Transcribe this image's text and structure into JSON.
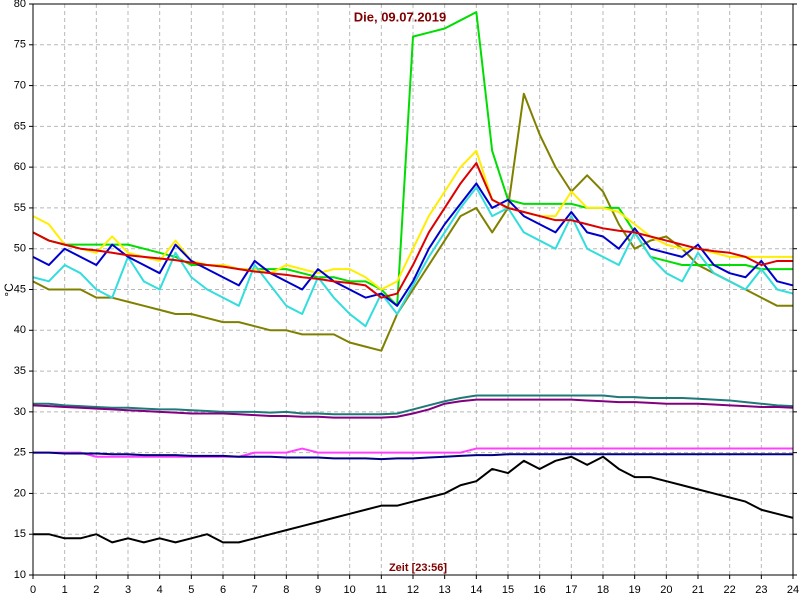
{
  "chart_data": {
    "type": "line",
    "title": "Die, 09.07.2019",
    "ylabel": "°C",
    "xlabel": "Zeit [23:56]",
    "x": [
      0,
      0.5,
      1,
      1.5,
      2,
      2.5,
      3,
      3.5,
      4,
      4.5,
      5,
      5.5,
      6,
      6.5,
      7,
      7.5,
      8,
      8.5,
      9,
      9.5,
      10,
      10.5,
      11,
      11.5,
      12,
      12.5,
      13,
      13.5,
      14,
      14.5,
      15,
      15.5,
      16,
      16.5,
      17,
      17.5,
      18,
      18.5,
      19,
      19.5,
      20,
      20.5,
      21,
      21.5,
      22,
      22.5,
      23,
      23.5,
      24
    ],
    "xlim": [
      0,
      24
    ],
    "ylim": [
      10,
      80
    ],
    "xticks": [
      0,
      1,
      2,
      3,
      4,
      5,
      6,
      7,
      8,
      9,
      10,
      11,
      12,
      13,
      14,
      15,
      16,
      17,
      18,
      19,
      20,
      21,
      22,
      23,
      24
    ],
    "yticks": [
      10,
      15,
      20,
      25,
      30,
      35,
      40,
      45,
      50,
      55,
      60,
      65,
      70,
      75,
      80
    ],
    "grid": true,
    "series": [
      {
        "color": "#808000",
        "values": [
          46,
          45,
          45,
          45,
          44,
          44,
          43.5,
          43,
          42.5,
          42,
          42,
          41.5,
          41,
          41,
          40.5,
          40,
          40,
          39.5,
          39.5,
          39.5,
          38.5,
          38,
          37.5,
          42,
          45,
          48,
          51,
          54,
          55,
          52,
          55,
          69,
          64,
          60,
          57,
          59,
          57,
          53,
          50,
          51,
          51.5,
          50,
          48,
          47,
          46,
          45,
          44,
          43,
          43
        ]
      },
      {
        "color": "#00dd00",
        "values": [
          52,
          51,
          50.5,
          50.5,
          50.5,
          50.5,
          50.5,
          50,
          49.5,
          49,
          48,
          48,
          48,
          47.5,
          47.5,
          47.5,
          47.5,
          47,
          46.5,
          46.5,
          46,
          46,
          45,
          43,
          76,
          76.5,
          77,
          78,
          79,
          62,
          56,
          55.5,
          55.5,
          55.5,
          55.5,
          55,
          55,
          55,
          52,
          49,
          48.5,
          48,
          48,
          48,
          48,
          48,
          47.5,
          47.5,
          47.5
        ]
      },
      {
        "color": "#ffee00",
        "values": [
          54,
          53,
          50.5,
          50,
          49.5,
          51.5,
          49.5,
          49,
          48.5,
          51,
          48.5,
          48,
          48,
          47.5,
          47.5,
          47,
          48,
          47.5,
          47,
          47.5,
          47.5,
          46.5,
          45,
          46,
          50,
          54,
          57,
          60,
          62,
          56,
          55,
          54.5,
          54,
          54,
          57,
          55,
          55,
          54.5,
          53,
          51.5,
          50.5,
          50,
          50,
          49.5,
          49,
          49,
          49,
          49,
          49
        ]
      },
      {
        "color": "#33dddd",
        "values": [
          46.5,
          46,
          48,
          47,
          45,
          44,
          49,
          46,
          45,
          49.5,
          46.5,
          45,
          44,
          43,
          48,
          45.5,
          43,
          42,
          46.5,
          44,
          42,
          40.5,
          44.5,
          42,
          45.5,
          49,
          52,
          55,
          57.5,
          54,
          55,
          52,
          51,
          50,
          54,
          50,
          49,
          48,
          52,
          49,
          47,
          46,
          49.5,
          47,
          46,
          45,
          47.5,
          45,
          44.5
        ]
      },
      {
        "color": "#0000cc",
        "values": [
          49,
          48,
          50,
          49,
          48,
          50.5,
          49,
          48,
          47,
          50.5,
          48.5,
          47.5,
          46.5,
          45.5,
          48.5,
          47,
          46,
          45,
          47.5,
          46,
          45,
          44,
          44.5,
          43,
          46,
          50,
          53,
          55.5,
          58,
          55,
          56,
          54,
          53,
          52,
          54.5,
          52,
          51.5,
          50,
          52.5,
          50,
          49.5,
          49,
          50.5,
          48,
          47,
          46.5,
          48.5,
          46,
          45.5
        ]
      },
      {
        "color": "#dd0000",
        "values": [
          52,
          51,
          50.5,
          50,
          49.8,
          49.5,
          49.2,
          49,
          48.8,
          48.6,
          48.3,
          48,
          47.8,
          47.5,
          47.2,
          47,
          46.8,
          46.5,
          46.3,
          46,
          45.8,
          45.5,
          44,
          44.5,
          48,
          52,
          55,
          58,
          60.5,
          56,
          55,
          54.5,
          54,
          53.5,
          53.5,
          53,
          52.5,
          52.2,
          52,
          51.5,
          51,
          50.5,
          50,
          49.7,
          49.5,
          49,
          48,
          48.5,
          48.5
        ]
      },
      {
        "color": "#207878",
        "values": [
          31,
          31,
          30.8,
          30.7,
          30.6,
          30.5,
          30.5,
          30.4,
          30.3,
          30.3,
          30.2,
          30.1,
          30,
          30,
          30,
          29.9,
          30,
          29.8,
          29.8,
          29.7,
          29.7,
          29.7,
          29.7,
          29.8,
          30.3,
          30.8,
          31.3,
          31.7,
          32,
          32,
          32,
          32,
          32,
          32,
          32,
          32,
          32,
          31.8,
          31.8,
          31.7,
          31.7,
          31.7,
          31.6,
          31.5,
          31.4,
          31.2,
          31,
          30.8,
          30.7
        ]
      },
      {
        "color": "#800080",
        "values": [
          30.8,
          30.7,
          30.6,
          30.5,
          30.4,
          30.3,
          30.2,
          30.1,
          30,
          29.9,
          29.8,
          29.8,
          29.8,
          29.7,
          29.6,
          29.5,
          29.5,
          29.4,
          29.4,
          29.3,
          29.3,
          29.3,
          29.3,
          29.4,
          29.8,
          30.3,
          31,
          31.3,
          31.5,
          31.5,
          31.5,
          31.5,
          31.5,
          31.5,
          31.5,
          31.4,
          31.3,
          31.2,
          31.2,
          31.1,
          31,
          31,
          31,
          30.9,
          30.8,
          30.7,
          30.6,
          30.6,
          30.5
        ]
      },
      {
        "color": "#ff40ff",
        "values": [
          25,
          25,
          25,
          25,
          24.5,
          24.5,
          24.5,
          24.5,
          24.5,
          24.5,
          24.5,
          24.5,
          24.5,
          24.5,
          25,
          25,
          25,
          25.5,
          25,
          25,
          25,
          25,
          25,
          25,
          25,
          25,
          25,
          25,
          25.5,
          25.5,
          25.5,
          25.5,
          25.5,
          25.5,
          25.5,
          25.5,
          25.5,
          25.5,
          25.5,
          25.5,
          25.5,
          25.5,
          25.5,
          25.5,
          25.5,
          25.5,
          25.5,
          25.5,
          25.5
        ]
      },
      {
        "color": "#000080",
        "values": [
          25,
          25,
          24.9,
          24.9,
          24.9,
          24.8,
          24.8,
          24.7,
          24.7,
          24.7,
          24.6,
          24.6,
          24.6,
          24.5,
          24.5,
          24.5,
          24.4,
          24.4,
          24.4,
          24.3,
          24.3,
          24.3,
          24.2,
          24.3,
          24.3,
          24.4,
          24.5,
          24.6,
          24.7,
          24.7,
          24.8,
          24.8,
          24.8,
          24.8,
          24.8,
          24.8,
          24.8,
          24.8,
          24.8,
          24.8,
          24.8,
          24.8,
          24.8,
          24.8,
          24.8,
          24.8,
          24.8,
          24.8,
          24.8
        ]
      },
      {
        "color": "#000000",
        "values": [
          15,
          15,
          14.5,
          14.5,
          15,
          14,
          14.5,
          14,
          14.5,
          14,
          14.5,
          15,
          14,
          14,
          14.5,
          15,
          15.5,
          16,
          16.5,
          17,
          17.5,
          18,
          18.5,
          18.5,
          19,
          19.5,
          20,
          21,
          21.5,
          23,
          22.5,
          24,
          23,
          24,
          24.5,
          23.5,
          24.5,
          23,
          22,
          22,
          21.5,
          21,
          20.5,
          20,
          19.5,
          19,
          18,
          17.5,
          17
        ]
      }
    ]
  }
}
